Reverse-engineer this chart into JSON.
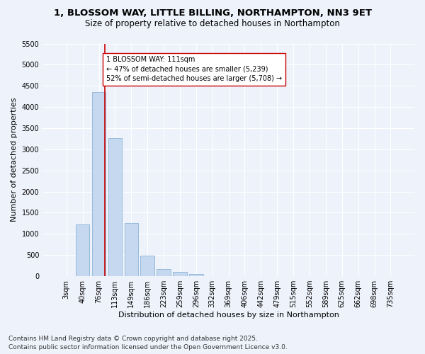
{
  "title_line1": "1, BLOSSOM WAY, LITTLE BILLING, NORTHAMPTON, NN3 9ET",
  "title_line2": "Size of property relative to detached houses in Northampton",
  "xlabel": "Distribution of detached houses by size in Northampton",
  "ylabel": "Number of detached properties",
  "categories": [
    "3sqm",
    "40sqm",
    "76sqm",
    "113sqm",
    "149sqm",
    "186sqm",
    "223sqm",
    "259sqm",
    "296sqm",
    "332sqm",
    "369sqm",
    "406sqm",
    "442sqm",
    "479sqm",
    "515sqm",
    "552sqm",
    "589sqm",
    "625sqm",
    "662sqm",
    "698sqm",
    "735sqm"
  ],
  "values": [
    0,
    1230,
    4350,
    3270,
    1250,
    490,
    170,
    100,
    50,
    0,
    0,
    0,
    0,
    0,
    0,
    0,
    0,
    0,
    0,
    0,
    0
  ],
  "bar_color": "#c5d8f0",
  "bar_edge_color": "#8ab4d8",
  "vline_color": "#cc0000",
  "vline_x": 2.35,
  "annotation_text": "1 BLOSSOM WAY: 111sqm\n← 47% of detached houses are smaller (5,239)\n52% of semi-detached houses are larger (5,708) →",
  "annotation_box_color": "#ffffff",
  "annotation_box_edge_color": "#cc0000",
  "ylim_max": 5500,
  "yticks": [
    0,
    500,
    1000,
    1500,
    2000,
    2500,
    3000,
    3500,
    4000,
    4500,
    5000,
    5500
  ],
  "footnote": "Contains HM Land Registry data © Crown copyright and database right 2025.\nContains public sector information licensed under the Open Government Licence v3.0.",
  "bg_color": "#eef2fb",
  "plot_bg_color": "#eef2fb",
  "grid_color": "#ffffff",
  "title_fontsize": 9.5,
  "subtitle_fontsize": 8.5,
  "axis_label_fontsize": 8,
  "tick_fontsize": 7,
  "annotation_fontsize": 7,
  "footnote_fontsize": 6.5
}
